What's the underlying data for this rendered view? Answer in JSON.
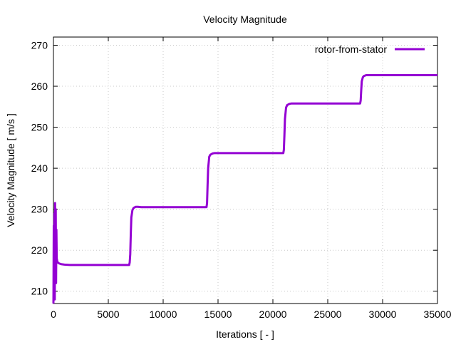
{
  "chart_data": {
    "type": "line",
    "title": "Velocity Magnitude",
    "xlabel": "Iterations [ - ]",
    "ylabel": "Velocity Magnitude [ m/s ]",
    "xlim": [
      0,
      35000
    ],
    "ylim": [
      207,
      272
    ],
    "xticks": [
      0,
      5000,
      10000,
      15000,
      20000,
      25000,
      30000,
      35000
    ],
    "yticks": [
      210,
      220,
      230,
      240,
      250,
      260,
      270
    ],
    "grid": true,
    "legend_position": "top-right",
    "series": [
      {
        "name": "rotor-from-stator",
        "color": "#9400d3",
        "x": [
          0,
          30,
          60,
          90,
          120,
          150,
          180,
          210,
          240,
          270,
          300,
          350,
          400,
          500,
          700,
          1000,
          1500,
          2000,
          3000,
          4000,
          5000,
          6000,
          6900,
          6950,
          7000,
          7050,
          7100,
          7200,
          7300,
          7500,
          7700,
          8000,
          9000,
          10000,
          11000,
          12000,
          13000,
          13950,
          14000,
          14050,
          14100,
          14200,
          14300,
          14500,
          14700,
          15000,
          16000,
          17000,
          18000,
          19000,
          20000,
          20950,
          21000,
          21050,
          21100,
          21200,
          21300,
          21500,
          21700,
          22000,
          23000,
          24000,
          25000,
          26000,
          27000,
          27950,
          28000,
          28050,
          28100,
          28200,
          28300,
          28500,
          28700,
          29000,
          30000,
          31000,
          32000,
          33000,
          34000,
          35000
        ],
        "y": [
          207,
          226,
          211,
          229,
          208,
          231.5,
          214,
          230,
          212,
          225,
          218,
          217.3,
          217,
          216.8,
          216.6,
          216.5,
          216.4,
          216.4,
          216.4,
          216.4,
          216.4,
          216.4,
          216.4,
          217,
          219,
          224,
          228,
          229.8,
          230.3,
          230.6,
          230.6,
          230.5,
          230.5,
          230.5,
          230.5,
          230.5,
          230.5,
          230.5,
          231.5,
          236,
          240,
          242.8,
          243.3,
          243.6,
          243.7,
          243.7,
          243.7,
          243.7,
          243.7,
          243.7,
          243.7,
          243.7,
          244.5,
          248,
          252,
          254.8,
          255.4,
          255.7,
          255.8,
          255.8,
          255.8,
          255.8,
          255.8,
          255.8,
          255.8,
          255.8,
          256.5,
          259,
          261.2,
          262.2,
          262.5,
          262.7,
          262.7,
          262.7,
          262.7,
          262.7,
          262.7,
          262.7,
          262.7,
          262.7
        ]
      }
    ]
  }
}
